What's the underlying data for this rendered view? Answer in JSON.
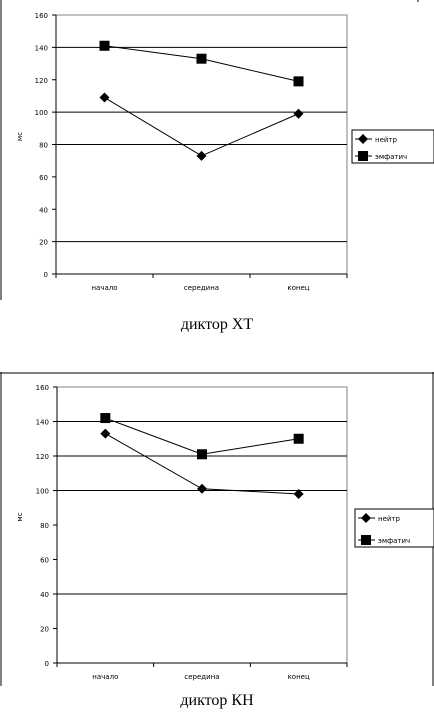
{
  "chart_data": [
    {
      "type": "line",
      "caption": "диктор ХТ",
      "ylabel": "мс",
      "categories": [
        "начало",
        "середина",
        "конец"
      ],
      "yticks": [
        "0",
        "20",
        "40",
        "60",
        "80",
        "100",
        "120",
        "140",
        "160"
      ],
      "ylim": [
        0,
        160
      ],
      "grid": true,
      "gridlines": [
        20,
        80,
        100,
        140
      ],
      "legend_position": "right",
      "series": [
        {
          "name": "нейтр",
          "marker": "diamond",
          "values": [
            109,
            73,
            99
          ]
        },
        {
          "name": "эмфатич",
          "marker": "square",
          "values": [
            141,
            133,
            119
          ]
        }
      ]
    },
    {
      "type": "line",
      "caption": "диктор КН",
      "ylabel": "мс",
      "categories": [
        "начало",
        "середина",
        "конец"
      ],
      "yticks": [
        "0",
        "20",
        "40",
        "60",
        "80",
        "100",
        "120",
        "140",
        "160"
      ],
      "ylim": [
        0,
        160
      ],
      "grid": true,
      "gridlines": [
        40,
        100,
        120,
        140
      ],
      "legend_position": "right",
      "series": [
        {
          "name": "нейтр",
          "marker": "diamond",
          "values": [
            133,
            101,
            98
          ]
        },
        {
          "name": "эмфатич",
          "marker": "square",
          "values": [
            142,
            121,
            130
          ]
        }
      ]
    }
  ]
}
